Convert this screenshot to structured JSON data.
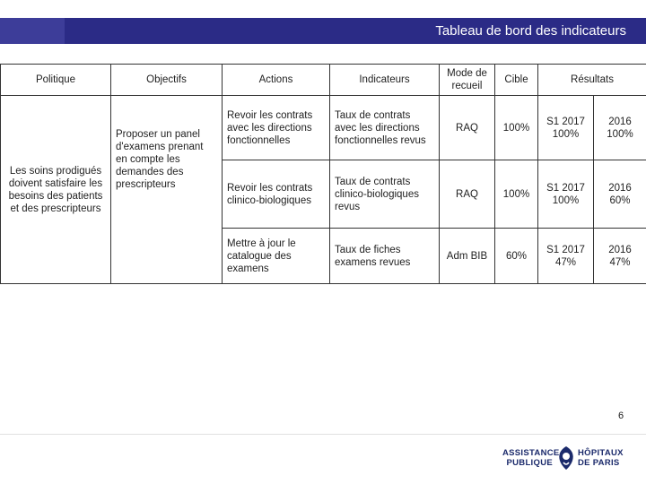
{
  "header": {
    "title": "Tableau de bord des indicateurs"
  },
  "table": {
    "columns": {
      "politique": "Politique",
      "objectifs": "Objectifs",
      "actions": "Actions",
      "indicateurs": "Indicateurs",
      "mode": "Mode de recueil",
      "cible": "Cible",
      "resultats": "Résultats"
    },
    "politique": "Les soins prodigués doivent satisfaire les besoins des patients et  des prescripteurs",
    "objectif": "Proposer un panel d'examens prenant en compte les demandes des prescripteurs",
    "rows": [
      {
        "action": "Revoir les contrats avec  les directions fonctionnelles",
        "indicateur": "Taux de contrats avec les directions fonctionnelles revus",
        "mode": "RAQ",
        "cible": "100%",
        "resultat1": "S1 2017 100%",
        "resultat2": "2016 100%"
      },
      {
        "action": "Revoir les contrats clinico-biologiques",
        "indicateur": "Taux de contrats clinico-biologiques revus",
        "mode": "RAQ",
        "cible": "100%",
        "resultat1": "S1 2017 100%",
        "resultat2": "2016 60%"
      },
      {
        "action": "Mettre à jour le catalogue des examens",
        "indicateur": "Taux de fiches examens  revues",
        "mode": "Adm BIB",
        "cible": "60%",
        "resultat1": "S1 2017 47%",
        "resultat2": "2016 47%"
      }
    ]
  },
  "footer": {
    "page_number": "6",
    "logo_left": "ASSISTANCE PUBLIQUE",
    "logo_right": "HÔPITAUX DE PARIS",
    "logo_color": "#1b2a6b"
  },
  "colors": {
    "header_band": "#2b2b86",
    "header_text": "#ffffff"
  }
}
